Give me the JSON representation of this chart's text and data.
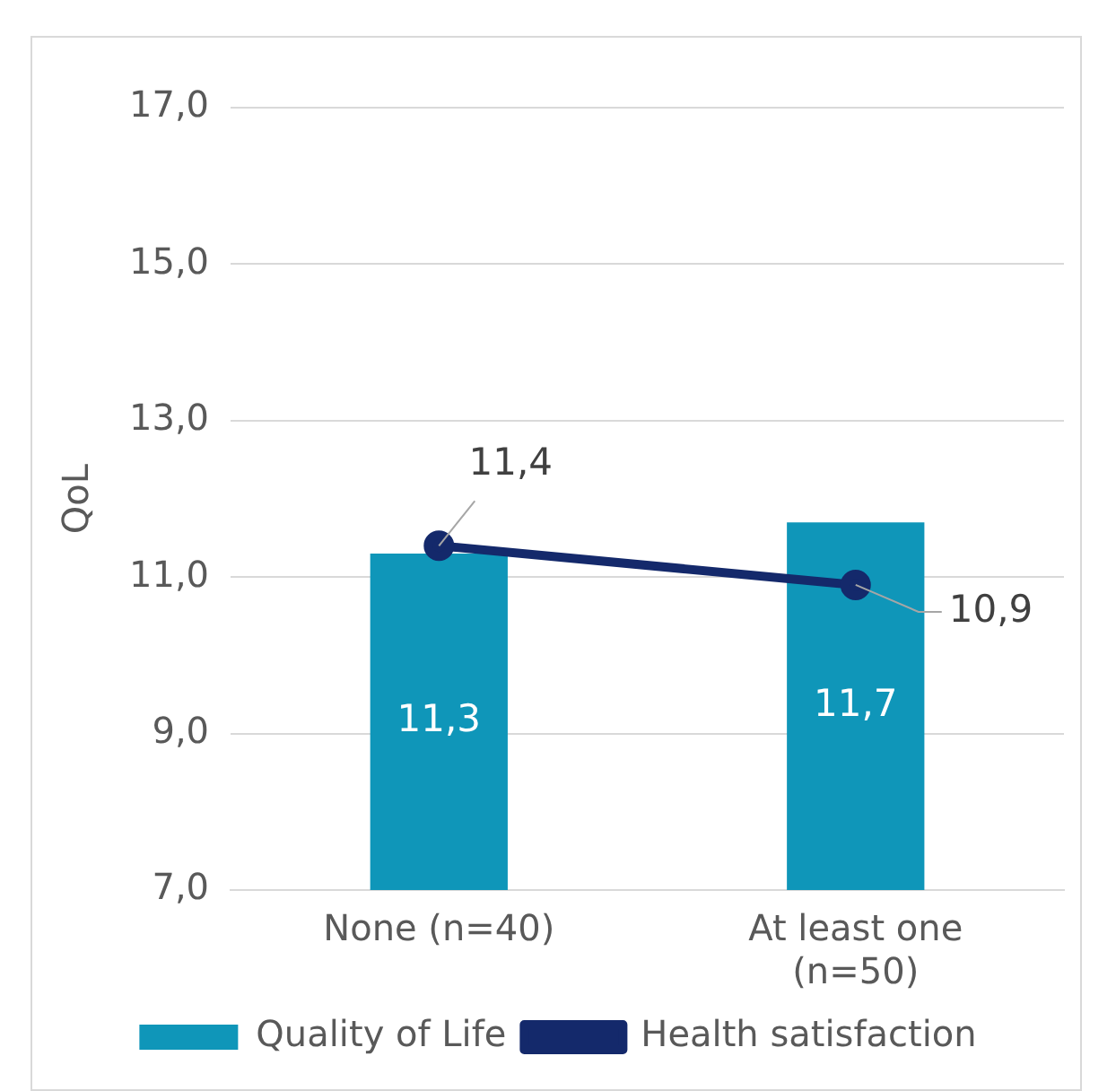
{
  "chart_data": {
    "type": "bar",
    "ylabel": "QoL",
    "categories": [
      "None (n=40)",
      "At least one (n=50)"
    ],
    "series": [
      {
        "name": "Quality of Life",
        "color": "#0f96b9",
        "values": [
          11.3,
          11.7
        ],
        "value_labels": [
          "11,3",
          "11,7"
        ]
      },
      {
        "name": "Health satisfaction",
        "type": "line",
        "color": "#14296b",
        "values": [
          11.4,
          10.9
        ],
        "value_labels": [
          "11,4",
          "10,9"
        ],
        "marker": "circle"
      }
    ],
    "ylim": [
      7,
      17
    ],
    "yticks": [
      {
        "value": 7,
        "label": "7,0"
      },
      {
        "value": 9,
        "label": "9,0"
      },
      {
        "value": 11,
        "label": "11,0"
      },
      {
        "value": 13,
        "label": "13,0"
      },
      {
        "value": 15,
        "label": "15,0"
      },
      {
        "value": 17,
        "label": "17,0"
      }
    ],
    "grid": "y",
    "legend": "bottom"
  }
}
